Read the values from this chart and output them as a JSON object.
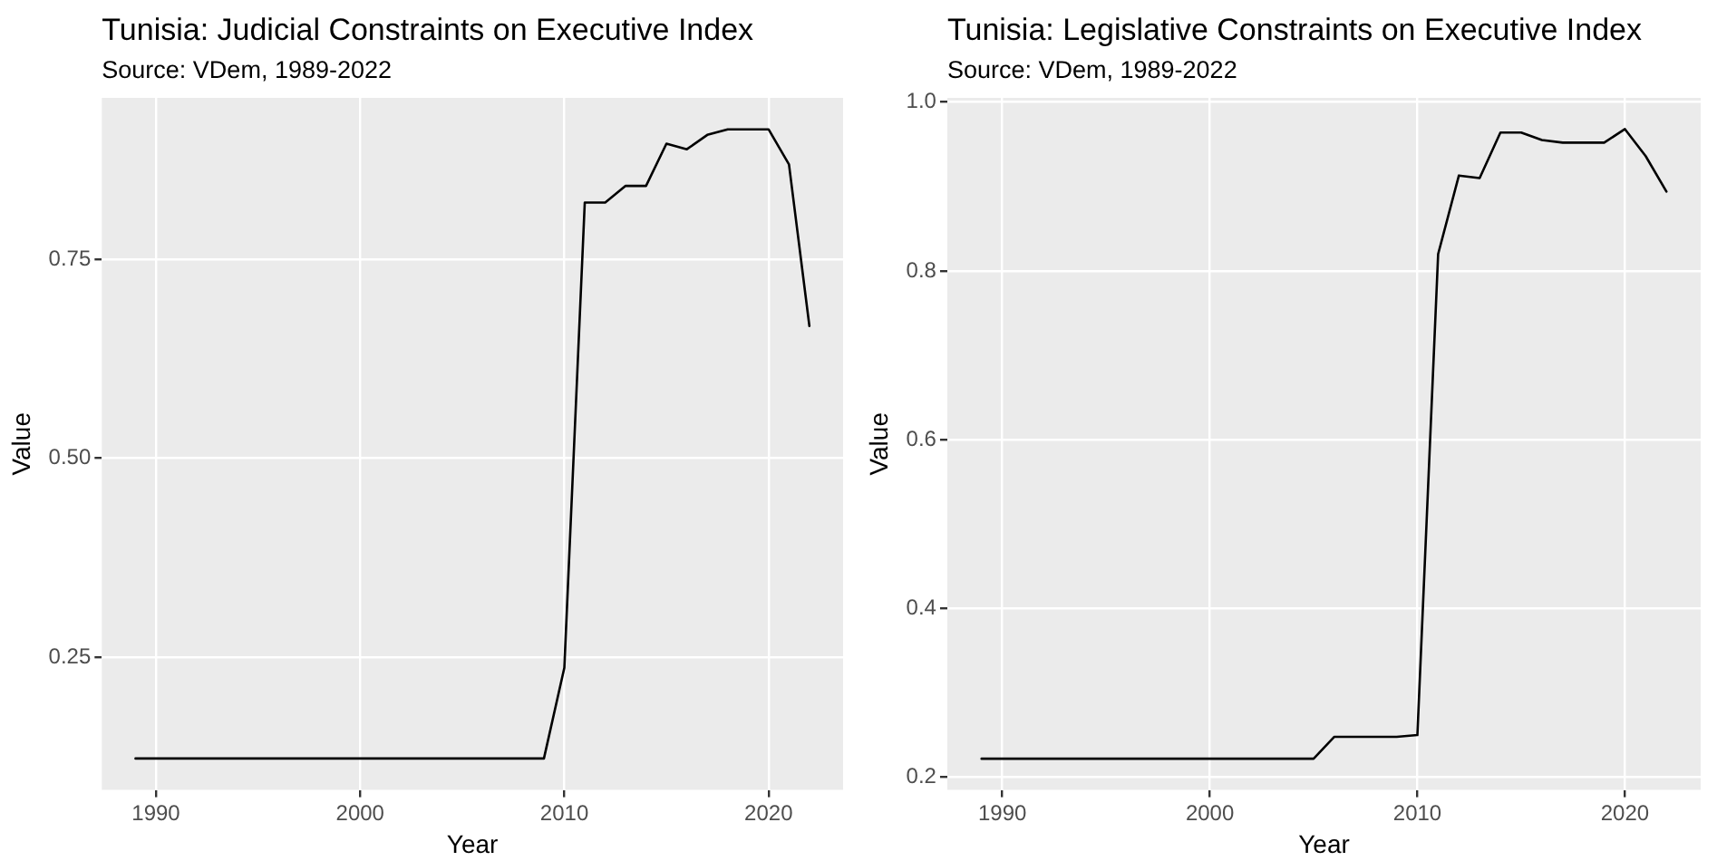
{
  "chart_data": [
    {
      "type": "line",
      "title": "Tunisia: Judicial Constraints on Executive Index",
      "subtitle": "Source: VDem, 1989-2022",
      "xlabel": "Year",
      "ylabel": "Value",
      "x": [
        1989,
        1990,
        1991,
        1992,
        1993,
        1994,
        1995,
        1996,
        1997,
        1998,
        1999,
        2000,
        2001,
        2002,
        2003,
        2004,
        2005,
        2006,
        2007,
        2008,
        2009,
        2010,
        2011,
        2012,
        2013,
        2014,
        2015,
        2016,
        2017,
        2018,
        2019,
        2020,
        2021,
        2022
      ],
      "series": [
        {
          "color": "#000000",
          "values": [
            0.123,
            0.123,
            0.123,
            0.123,
            0.123,
            0.123,
            0.123,
            0.123,
            0.123,
            0.123,
            0.123,
            0.123,
            0.123,
            0.123,
            0.123,
            0.123,
            0.123,
            0.123,
            0.123,
            0.123,
            0.123,
            0.237,
            0.821,
            0.821,
            0.842,
            0.842,
            0.895,
            0.888,
            0.906,
            0.913,
            0.913,
            0.913,
            0.869,
            0.666
          ]
        }
      ],
      "xlim": [
        1987.35,
        2023.65
      ],
      "xticks": [
        1990,
        2000,
        2010,
        2020
      ],
      "ylim": [
        0.0835,
        0.9525
      ],
      "yticks": [
        0.25,
        {
          "value": 0.5,
          "label": "0.50"
        },
        0.75
      ],
      "grid": true,
      "legend": false,
      "marker": "none",
      "line_style": "solid"
    },
    {
      "type": "line",
      "title": "Tunisia: Legislative Constraints on Executive Index",
      "subtitle": "Source: VDem, 1989-2022",
      "xlabel": "Year",
      "ylabel": "Value",
      "x": [
        1989,
        1990,
        1991,
        1992,
        1993,
        1994,
        1995,
        1996,
        1997,
        1998,
        1999,
        2000,
        2001,
        2002,
        2003,
        2004,
        2005,
        2006,
        2007,
        2008,
        2009,
        2010,
        2011,
        2012,
        2013,
        2014,
        2015,
        2016,
        2017,
        2018,
        2019,
        2020,
        2021,
        2022
      ],
      "series": [
        {
          "color": "#000000",
          "values": [
            0.222,
            0.222,
            0.222,
            0.222,
            0.222,
            0.222,
            0.222,
            0.222,
            0.222,
            0.222,
            0.222,
            0.222,
            0.222,
            0.222,
            0.222,
            0.222,
            0.222,
            0.248,
            0.248,
            0.248,
            0.248,
            0.25,
            0.82,
            0.913,
            0.91,
            0.964,
            0.964,
            0.955,
            0.952,
            0.952,
            0.952,
            0.968,
            0.936,
            0.894
          ]
        }
      ],
      "xlim": [
        1987.35,
        2023.65
      ],
      "xticks": [
        1990,
        2000,
        2010,
        2020
      ],
      "ylim": [
        0.185,
        1.005
      ],
      "yticks": [
        0.2,
        0.4,
        0.6,
        0.8,
        {
          "value": 1,
          "label": "1.0"
        }
      ],
      "grid": true,
      "legend": false,
      "marker": "none",
      "line_style": "solid"
    }
  ]
}
